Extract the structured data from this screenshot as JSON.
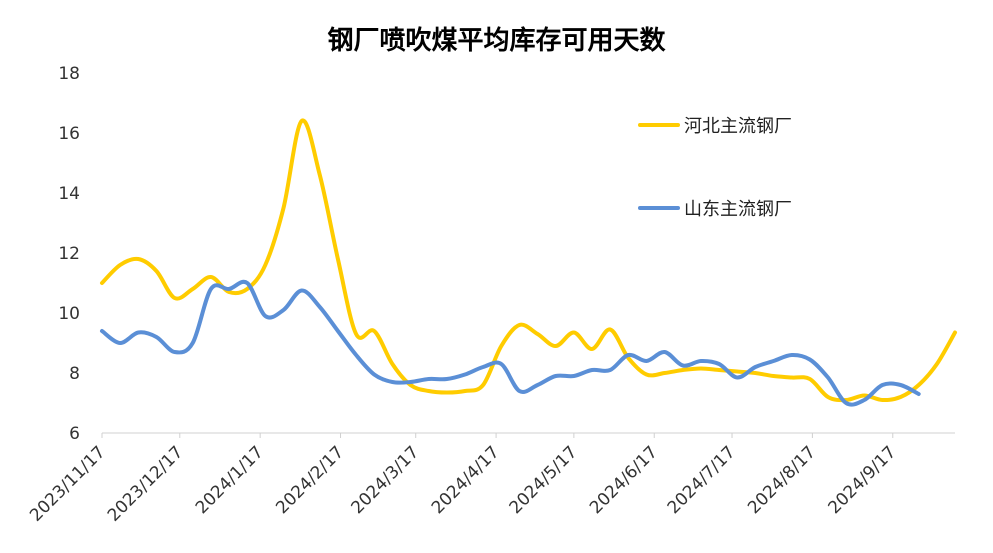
{
  "chart_data": {
    "type": "line",
    "title": "钢厂喷吹煤平均库存可用天数",
    "xlabel": "",
    "ylabel": "",
    "ylim": [
      6,
      18
    ],
    "yticks": [
      6,
      8,
      10,
      12,
      14,
      16,
      18
    ],
    "x_range": [
      "2023/11/17",
      "2024/10/11"
    ],
    "x_ticks": [
      "2023/11/17",
      "2023/12/17",
      "2024/1/17",
      "2024/2/17",
      "2024/3/17",
      "2024/4/17",
      "2024/5/17",
      "2024/6/17",
      "2024/7/17",
      "2024/8/17",
      "2024/9/17"
    ],
    "grid": false,
    "legend_position": "top-right",
    "series": [
      {
        "name": "河北主流钢厂",
        "color": "#FFCC00",
        "points": [
          [
            "2023/11/17",
            11.0
          ],
          [
            "2023/11/24",
            11.6
          ],
          [
            "2023/12/1",
            11.8
          ],
          [
            "2023/12/8",
            11.4
          ],
          [
            "2023/12/15",
            10.5
          ],
          [
            "2023/12/22",
            10.8
          ],
          [
            "2023/12/29",
            11.2
          ],
          [
            "2024/1/5",
            10.7
          ],
          [
            "2024/1/12",
            10.8
          ],
          [
            "2024/1/19",
            11.6
          ],
          [
            "2024/1/26",
            13.5
          ],
          [
            "2024/2/2",
            16.4
          ],
          [
            "2024/2/9",
            14.6
          ],
          [
            "2024/2/16",
            11.8
          ],
          [
            "2024/2/23",
            9.3
          ],
          [
            "2024/3/1",
            9.4
          ],
          [
            "2024/3/8",
            8.3
          ],
          [
            "2024/3/15",
            7.6
          ],
          [
            "2024/3/22",
            7.4
          ],
          [
            "2024/3/29",
            7.35
          ],
          [
            "2024/4/5",
            7.4
          ],
          [
            "2024/4/12",
            7.6
          ],
          [
            "2024/4/19",
            8.9
          ],
          [
            "2024/4/26",
            9.6
          ],
          [
            "2024/5/3",
            9.3
          ],
          [
            "2024/5/10",
            8.9
          ],
          [
            "2024/5/17",
            9.35
          ],
          [
            "2024/5/24",
            8.8
          ],
          [
            "2024/5/31",
            9.45
          ],
          [
            "2024/6/7",
            8.5
          ],
          [
            "2024/6/14",
            7.95
          ],
          [
            "2024/6/21",
            8.0
          ],
          [
            "2024/6/28",
            8.1
          ],
          [
            "2024/7/5",
            8.15
          ],
          [
            "2024/7/12",
            8.1
          ],
          [
            "2024/7/19",
            8.05
          ],
          [
            "2024/7/26",
            8.0
          ],
          [
            "2024/8/2",
            7.9
          ],
          [
            "2024/8/9",
            7.85
          ],
          [
            "2024/8/16",
            7.8
          ],
          [
            "2024/8/23",
            7.2
          ],
          [
            "2024/8/30",
            7.1
          ],
          [
            "2024/9/6",
            7.25
          ],
          [
            "2024/9/13",
            7.1
          ],
          [
            "2024/9/20",
            7.2
          ],
          [
            "2024/9/27",
            7.6
          ],
          [
            "2024/10/4",
            8.3
          ],
          [
            "2024/10/11",
            9.35
          ]
        ]
      },
      {
        "name": "山东主流钢厂",
        "color": "#5B8FD6",
        "points": [
          [
            "2023/11/17",
            9.4
          ],
          [
            "2023/11/24",
            9.0
          ],
          [
            "2023/12/1",
            9.35
          ],
          [
            "2023/12/8",
            9.2
          ],
          [
            "2023/12/15",
            8.7
          ],
          [
            "2023/12/22",
            9.0
          ],
          [
            "2023/12/29",
            10.8
          ],
          [
            "2024/1/5",
            10.8
          ],
          [
            "2024/1/12",
            11.0
          ],
          [
            "2024/1/19",
            9.9
          ],
          [
            "2024/1/26",
            10.1
          ],
          [
            "2024/2/2",
            10.75
          ],
          [
            "2024/2/9",
            10.2
          ],
          [
            "2024/2/16",
            9.4
          ],
          [
            "2024/2/23",
            8.6
          ],
          [
            "2024/3/1",
            7.95
          ],
          [
            "2024/3/8",
            7.7
          ],
          [
            "2024/3/15",
            7.7
          ],
          [
            "2024/3/22",
            7.8
          ],
          [
            "2024/3/29",
            7.8
          ],
          [
            "2024/4/5",
            7.95
          ],
          [
            "2024/4/12",
            8.2
          ],
          [
            "2024/4/19",
            8.3
          ],
          [
            "2024/4/26",
            7.4
          ],
          [
            "2024/5/3",
            7.6
          ],
          [
            "2024/5/10",
            7.9
          ],
          [
            "2024/5/17",
            7.9
          ],
          [
            "2024/5/24",
            8.1
          ],
          [
            "2024/5/31",
            8.1
          ],
          [
            "2024/6/7",
            8.6
          ],
          [
            "2024/6/14",
            8.4
          ],
          [
            "2024/6/21",
            8.7
          ],
          [
            "2024/6/28",
            8.25
          ],
          [
            "2024/7/5",
            8.4
          ],
          [
            "2024/7/12",
            8.3
          ],
          [
            "2024/7/19",
            7.85
          ],
          [
            "2024/7/26",
            8.2
          ],
          [
            "2024/8/2",
            8.4
          ],
          [
            "2024/8/9",
            8.6
          ],
          [
            "2024/8/16",
            8.45
          ],
          [
            "2024/8/23",
            7.85
          ],
          [
            "2024/8/30",
            7.0
          ],
          [
            "2024/9/6",
            7.1
          ],
          [
            "2024/9/13",
            7.6
          ],
          [
            "2024/9/20",
            7.6
          ],
          [
            "2024/9/27",
            7.3
          ]
        ]
      }
    ]
  }
}
